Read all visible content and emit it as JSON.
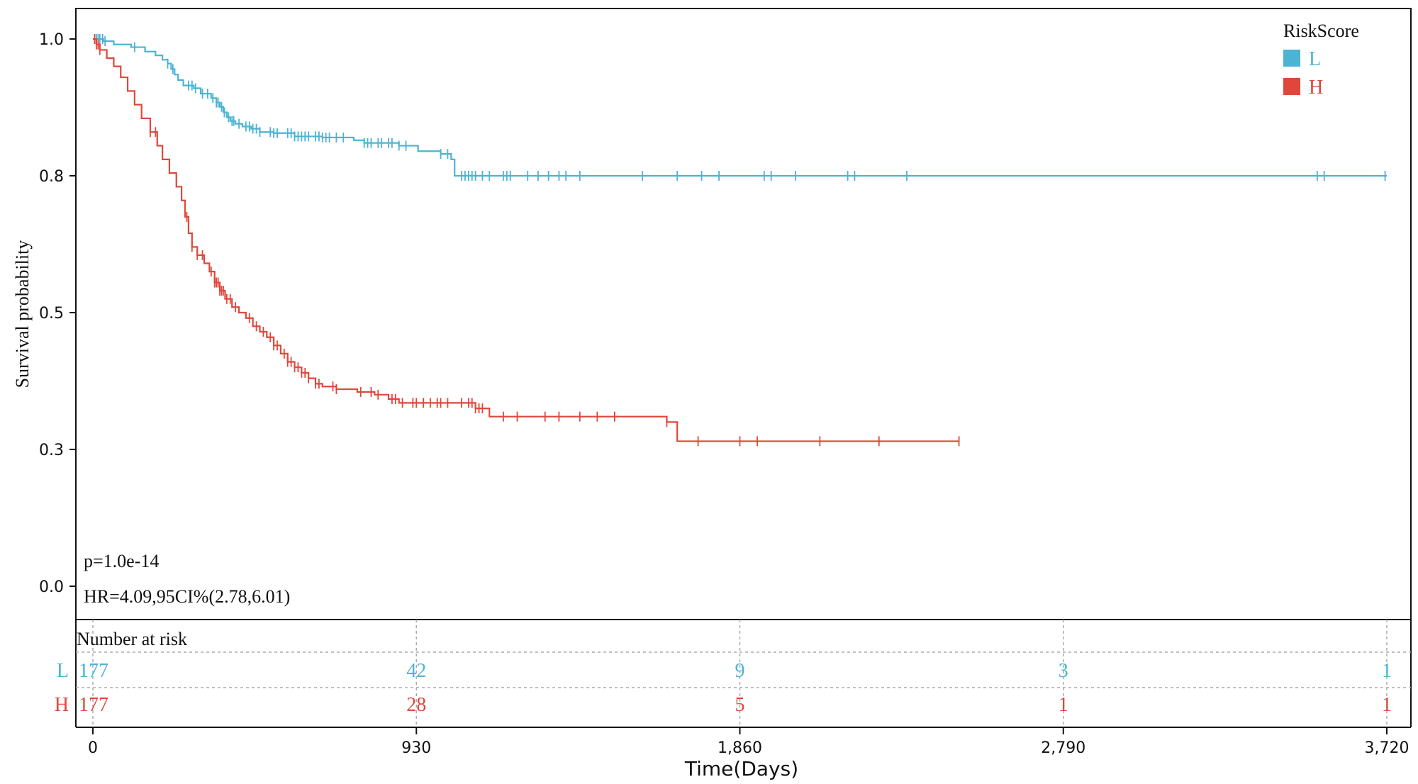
{
  "chart_data": {
    "type": "line",
    "subtype": "kaplan-meier",
    "title": "",
    "xlabel": "Time(Days)",
    "ylabel": "Survival probability",
    "xlim": [
      0,
      3720
    ],
    "ylim": [
      0,
      1.0
    ],
    "x_ticks": [
      0,
      930,
      1860,
      2790,
      3720
    ],
    "x_tick_labels": [
      "0",
      "930",
      "1,860",
      "2,790",
      "3,720"
    ],
    "y_ticks": [
      0.0,
      0.25,
      0.5,
      0.75,
      1.0
    ],
    "y_tick_labels": [
      "0.0",
      "0.3",
      "0.5",
      "0.8",
      "1.0"
    ],
    "grid": false,
    "legend": {
      "title": "RiskScore",
      "position": "top-right"
    },
    "annotations": {
      "p_value": "p=1.0e-14",
      "hazard_ratio": "HR=4.09,95CI%(2.78,6.01)"
    },
    "series": [
      {
        "name": "L",
        "color": "#4bb4d3",
        "steps": [
          [
            0,
            1.0
          ],
          [
            30,
            0.996
          ],
          [
            60,
            0.99
          ],
          [
            110,
            0.985
          ],
          [
            150,
            0.977
          ],
          [
            180,
            0.97
          ],
          [
            200,
            0.962
          ],
          [
            215,
            0.955
          ],
          [
            225,
            0.945
          ],
          [
            235,
            0.935
          ],
          [
            245,
            0.925
          ],
          [
            260,
            0.915
          ],
          [
            290,
            0.91
          ],
          [
            310,
            0.9
          ],
          [
            340,
            0.892
          ],
          [
            355,
            0.884
          ],
          [
            365,
            0.876
          ],
          [
            375,
            0.866
          ],
          [
            385,
            0.857
          ],
          [
            395,
            0.85
          ],
          [
            410,
            0.845
          ],
          [
            430,
            0.84
          ],
          [
            455,
            0.836
          ],
          [
            480,
            0.83
          ],
          [
            520,
            0.828
          ],
          [
            580,
            0.822
          ],
          [
            660,
            0.82
          ],
          [
            750,
            0.815
          ],
          [
            780,
            0.81
          ],
          [
            880,
            0.805
          ],
          [
            935,
            0.795
          ],
          [
            1000,
            0.79
          ],
          [
            1030,
            0.78
          ],
          [
            1040,
            0.75
          ],
          [
            3720,
            0.75
          ]
        ],
        "censors": [
          5,
          10,
          15,
          20,
          28,
          35,
          120,
          215,
          230,
          275,
          285,
          295,
          315,
          330,
          345,
          355,
          360,
          370,
          378,
          390,
          400,
          405,
          420,
          440,
          450,
          460,
          470,
          480,
          510,
          520,
          530,
          560,
          570,
          580,
          590,
          600,
          610,
          620,
          640,
          650,
          660,
          670,
          680,
          700,
          720,
          780,
          790,
          800,
          820,
          830,
          850,
          860,
          880,
          900,
          1000,
          1020,
          1060,
          1070,
          1080,
          1090,
          1100,
          1120,
          1140,
          1180,
          1190,
          1200,
          1250,
          1280,
          1310,
          1340,
          1360,
          1400,
          1580,
          1680,
          1750,
          1800,
          1930,
          1950,
          2020,
          2170,
          2190,
          2340,
          3520,
          3540,
          3715
        ],
        "at_risk": [
          177,
          42,
          9,
          3,
          1
        ]
      },
      {
        "name": "H",
        "color": "#e0473a",
        "steps": [
          [
            0,
            1.0
          ],
          [
            10,
            0.99
          ],
          [
            20,
            0.98
          ],
          [
            40,
            0.965
          ],
          [
            60,
            0.95
          ],
          [
            80,
            0.93
          ],
          [
            100,
            0.905
          ],
          [
            120,
            0.88
          ],
          [
            140,
            0.855
          ],
          [
            165,
            0.83
          ],
          [
            185,
            0.805
          ],
          [
            200,
            0.78
          ],
          [
            220,
            0.755
          ],
          [
            240,
            0.73
          ],
          [
            255,
            0.705
          ],
          [
            265,
            0.675
          ],
          [
            275,
            0.645
          ],
          [
            285,
            0.62
          ],
          [
            300,
            0.605
          ],
          [
            320,
            0.59
          ],
          [
            335,
            0.575
          ],
          [
            350,
            0.555
          ],
          [
            365,
            0.54
          ],
          [
            380,
            0.525
          ],
          [
            400,
            0.51
          ],
          [
            420,
            0.5
          ],
          [
            440,
            0.49
          ],
          [
            460,
            0.475
          ],
          [
            480,
            0.465
          ],
          [
            500,
            0.455
          ],
          [
            520,
            0.44
          ],
          [
            540,
            0.425
          ],
          [
            560,
            0.41
          ],
          [
            580,
            0.4
          ],
          [
            600,
            0.39
          ],
          [
            620,
            0.38
          ],
          [
            640,
            0.37
          ],
          [
            660,
            0.365
          ],
          [
            700,
            0.36
          ],
          [
            760,
            0.355
          ],
          [
            810,
            0.35
          ],
          [
            850,
            0.342
          ],
          [
            880,
            0.335
          ],
          [
            1100,
            0.325
          ],
          [
            1140,
            0.31
          ],
          [
            1650,
            0.3
          ],
          [
            1680,
            0.265
          ],
          [
            2490,
            0.265
          ]
        ],
        "censors": [
          5,
          10,
          15,
          20,
          165,
          180,
          270,
          285,
          300,
          315,
          340,
          350,
          355,
          360,
          365,
          370,
          375,
          385,
          395,
          410,
          450,
          470,
          490,
          510,
          520,
          530,
          550,
          560,
          570,
          580,
          590,
          600,
          610,
          620,
          640,
          650,
          690,
          700,
          770,
          800,
          820,
          860,
          870,
          890,
          920,
          930,
          950,
          970,
          990,
          1000,
          1020,
          1060,
          1080,
          1090,
          1100,
          1110,
          1120,
          1180,
          1220,
          1300,
          1340,
          1400,
          1450,
          1500,
          1650,
          1740,
          1860,
          1910,
          2090,
          2260,
          2490
        ],
        "at_risk": [
          177,
          28,
          5,
          1,
          1
        ]
      }
    ],
    "risk_table": {
      "title": "Number at risk",
      "groups": [
        "L",
        "H"
      ]
    }
  }
}
